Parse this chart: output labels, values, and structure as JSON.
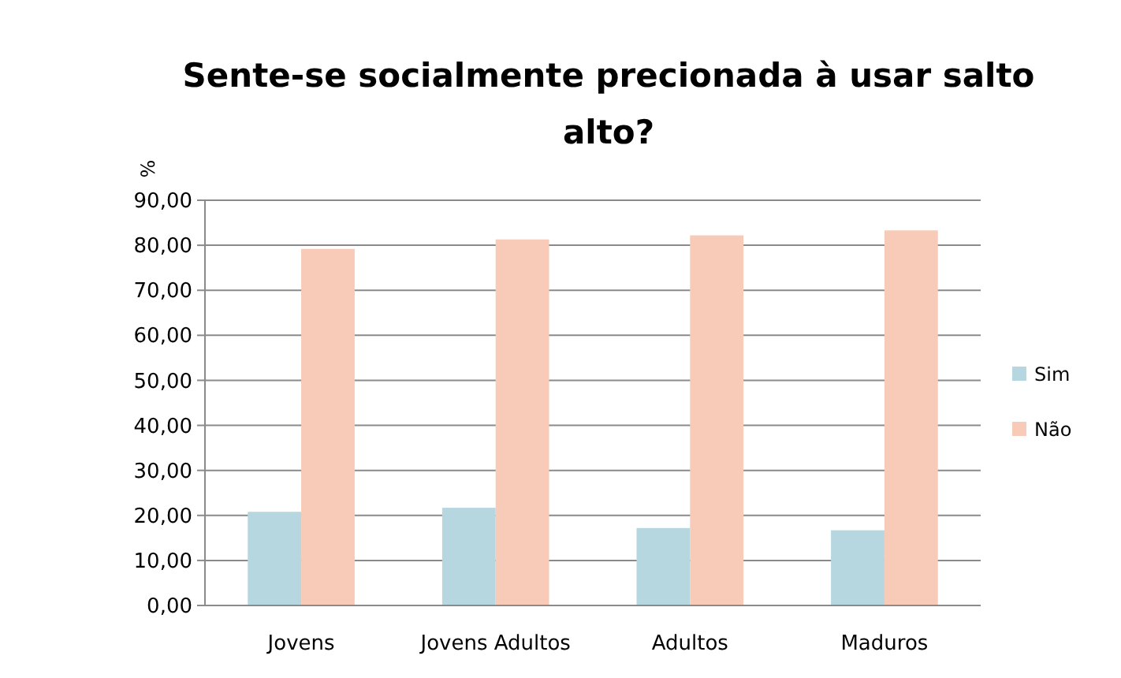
{
  "chart_data": {
    "type": "bar",
    "title": "Sente-se socialmente precionada à usar salto alto?",
    "ylabel": "%",
    "categories": [
      "Jovens",
      "Jovens Adultos",
      "Adultos",
      "Maduros"
    ],
    "series": [
      {
        "name": "Sim",
        "color": "#b7d7e0",
        "values": [
          20.8,
          21.7,
          17.2,
          16.7
        ]
      },
      {
        "name": "Não",
        "color": "#f7cbb7",
        "values": [
          79.2,
          81.3,
          82.2,
          83.3
        ]
      }
    ],
    "ylim": [
      0,
      90
    ],
    "yticks": [
      {
        "value": 0,
        "label": "0,00"
      },
      {
        "value": 10,
        "label": "10,00"
      },
      {
        "value": 20,
        "label": "20,00"
      },
      {
        "value": 30,
        "label": "30,00"
      },
      {
        "value": 40,
        "label": "40,00"
      },
      {
        "value": 50,
        "label": "50,00"
      },
      {
        "value": 60,
        "label": "60,00"
      },
      {
        "value": 70,
        "label": "70,00"
      },
      {
        "value": 80,
        "label": "80,00"
      },
      {
        "value": 90,
        "label": "90,00"
      }
    ],
    "grid": "y",
    "legend": "right"
  }
}
